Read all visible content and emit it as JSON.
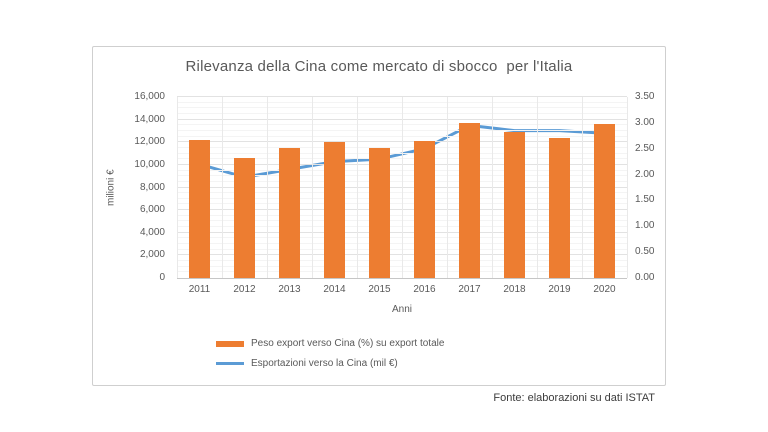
{
  "page": {
    "footer": "Fonte: elaborazioni su dati ISTAT"
  },
  "chart_data": {
    "type": "combo-bar-line",
    "title": "Rilevanza della Cina come mercato di sbocco  per l'Italia",
    "xlabel": "Anni",
    "ylabel_left": "milioni €",
    "categories": [
      "2011",
      "2012",
      "2013",
      "2014",
      "2015",
      "2016",
      "2017",
      "2018",
      "2019",
      "2020"
    ],
    "series": [
      {
        "name": "Peso export verso Cina (%) su export totale",
        "type": "bar",
        "axis": "left",
        "color": "#ED7D31",
        "values": [
          12200,
          10600,
          11500,
          12000,
          11500,
          12100,
          13700,
          12900,
          12400,
          13600
        ]
      },
      {
        "name": "Esportazioni verso la Cina (mil €)",
        "type": "line",
        "axis": "right",
        "color": "#5B9BD5",
        "values": [
          2.2,
          1.95,
          2.1,
          2.25,
          2.3,
          2.5,
          2.95,
          2.85,
          2.85,
          2.8
        ]
      }
    ],
    "left_axis": {
      "min": 0,
      "max": 16000,
      "major": 2000,
      "minor": 500,
      "ticks": [
        "0",
        "2,000",
        "4,000",
        "6,000",
        "8,000",
        "10,000",
        "12,000",
        "14,000",
        "16,000"
      ]
    },
    "right_axis": {
      "min": 0,
      "max": 3.5,
      "major": 0.5,
      "ticks": [
        "0.00",
        "0.50",
        "1.00",
        "1.50",
        "2.00",
        "2.50",
        "3.00",
        "3.50"
      ]
    },
    "grid": true,
    "legend_position": "bottom-left"
  },
  "colors": {
    "bar": "#ED7D31",
    "line": "#5B9BD5",
    "text": "#595959",
    "grid_major": "#e2e2e2",
    "grid_minor": "#f4f4f4",
    "frame_border": "#cfcfcf"
  }
}
